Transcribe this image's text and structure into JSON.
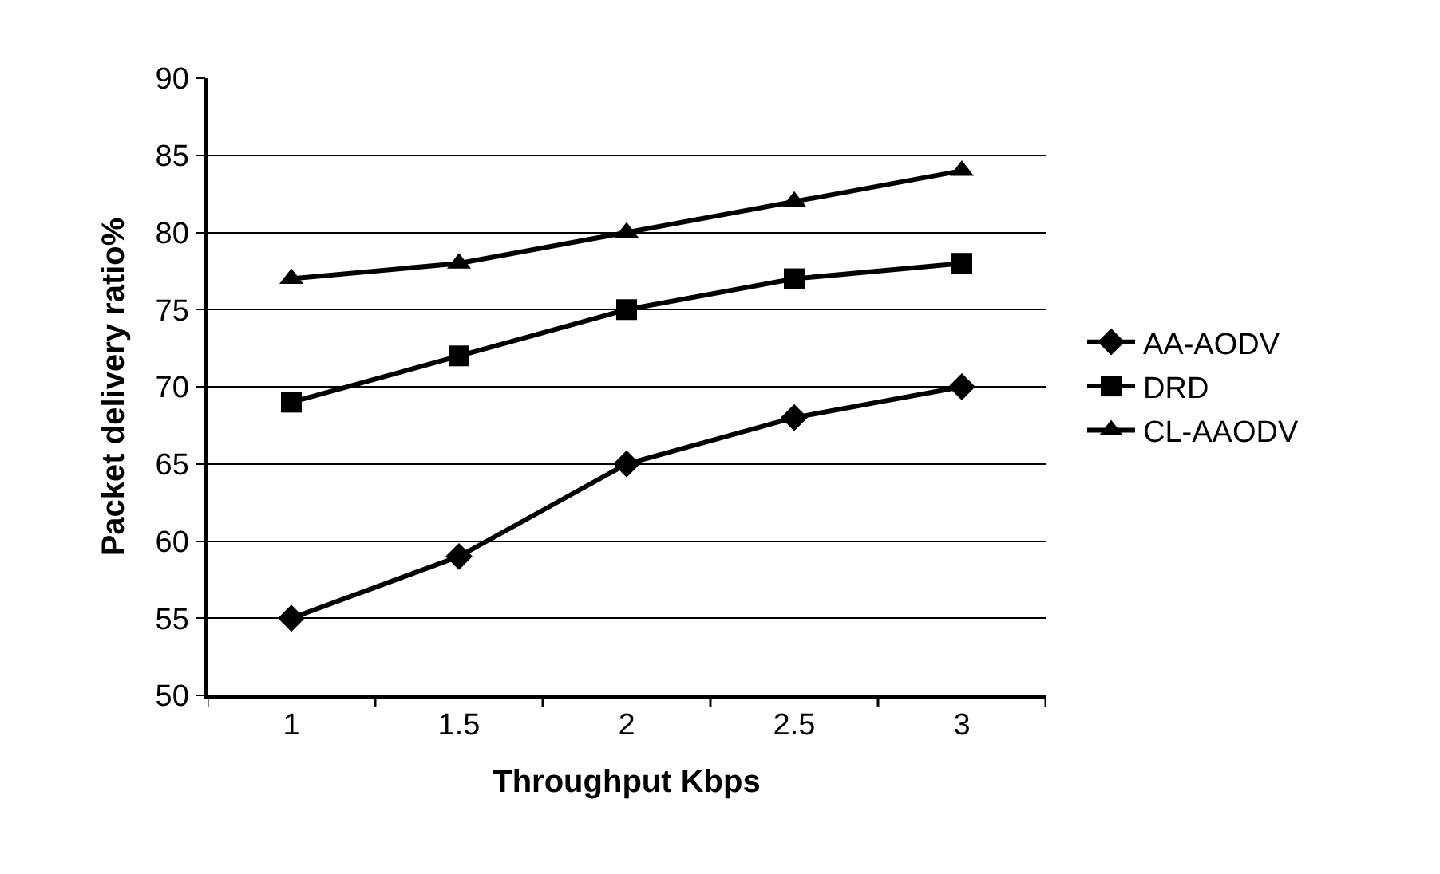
{
  "chart_data": {
    "type": "line",
    "xlabel": "Throughput Kbps",
    "ylabel": "Packet delivery ratio%",
    "categories": [
      "1",
      "1.5",
      "2",
      "2.5",
      "3"
    ],
    "series": [
      {
        "name": "AA-AODV",
        "color": "#000000",
        "marker": "diamond",
        "values": [
          55,
          59,
          65,
          68,
          70
        ]
      },
      {
        "name": "DRD",
        "color": "#000000",
        "marker": "square",
        "values": [
          69,
          72,
          75,
          77,
          78
        ]
      },
      {
        "name": "CL-AAODV",
        "color": "#000000",
        "marker": "triangle",
        "values": [
          77,
          78,
          80,
          82,
          84
        ]
      }
    ],
    "ylim": [
      50,
      90
    ],
    "yticks": [
      50,
      55,
      60,
      65,
      70,
      75,
      80,
      85,
      90
    ],
    "grid": "y",
    "legend": "right",
    "line_style": "solid"
  }
}
